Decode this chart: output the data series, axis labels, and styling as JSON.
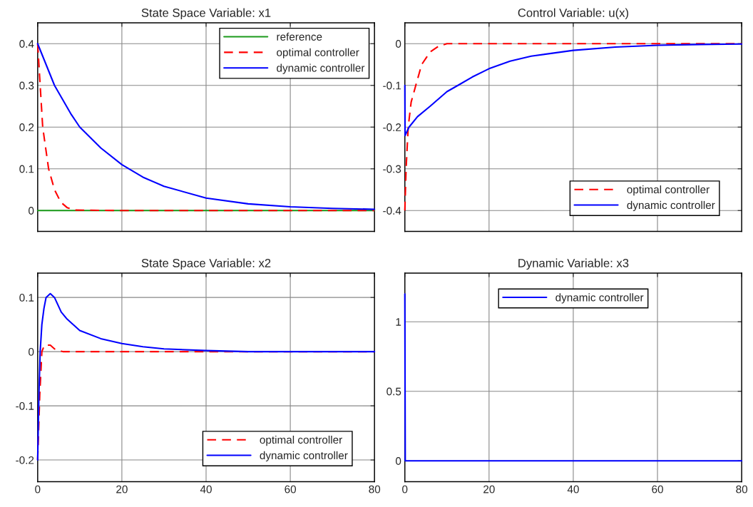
{
  "chart_data": [
    {
      "type": "line",
      "title": "State Space Variable: x1",
      "xlim": [
        0,
        80
      ],
      "xticks": [
        0,
        20,
        40,
        60,
        80
      ],
      "ylim": [
        -0.05,
        0.45
      ],
      "yticks": [
        0,
        0.1,
        0.2,
        0.3,
        0.4
      ],
      "tick_labels": "y",
      "grid": true,
      "legend": "top right",
      "series": [
        {
          "name": "reference",
          "color": "#1a9a1a",
          "line_style": "solid",
          "x": [
            0,
            80
          ],
          "values": [
            0,
            0
          ]
        },
        {
          "name": "optimal controller",
          "color": "#ff0000",
          "line_style": "dashed",
          "x": [
            0,
            0.6,
            1.2,
            2.6,
            4,
            5.5,
            7,
            9,
            20,
            80
          ],
          "values": [
            0.4,
            0.3,
            0.2,
            0.1,
            0.05,
            0.02,
            0.007,
            0.001,
            0,
            0
          ]
        },
        {
          "name": "dynamic controller",
          "color": "#0000ff",
          "line_style": "solid",
          "x": [
            0,
            2,
            4,
            6,
            8,
            10,
            15,
            20,
            25,
            30,
            40,
            50,
            60,
            70,
            80
          ],
          "values": [
            0.4,
            0.35,
            0.3,
            0.265,
            0.23,
            0.2,
            0.15,
            0.11,
            0.08,
            0.058,
            0.03,
            0.016,
            0.009,
            0.005,
            0.003
          ]
        }
      ]
    },
    {
      "type": "line",
      "title": "Control Variable: u(x)",
      "xlim": [
        0,
        80
      ],
      "xticks": [
        0,
        20,
        40,
        60,
        80
      ],
      "ylim": [
        -0.45,
        0.05
      ],
      "yticks": [
        -0.4,
        -0.3,
        -0.2,
        -0.1,
        0
      ],
      "tick_labels": "y",
      "grid": true,
      "legend": "bottom right",
      "series": [
        {
          "name": "optimal controller",
          "color": "#ff0000",
          "line_style": "dashed",
          "x": [
            0,
            0.3,
            0.8,
            1.5,
            2.6,
            4,
            6,
            8,
            10,
            80
          ],
          "values": [
            -0.4,
            -0.3,
            -0.2,
            -0.14,
            -0.1,
            -0.05,
            -0.02,
            -0.006,
            0,
            0
          ]
        },
        {
          "name": "dynamic controller",
          "color": "#0000ff",
          "line_style": "solid",
          "x": [
            0,
            0.05,
            1,
            3,
            6,
            10,
            12.6,
            16,
            20,
            25,
            30,
            40,
            50,
            60,
            70,
            80
          ],
          "values": [
            -0.1,
            -0.22,
            -0.2,
            -0.175,
            -0.15,
            -0.115,
            -0.1,
            -0.08,
            -0.06,
            -0.042,
            -0.03,
            -0.016,
            -0.008,
            -0.004,
            -0.002,
            -0.001
          ]
        }
      ]
    },
    {
      "type": "line",
      "title": "State Space Variable: x2",
      "xlim": [
        0,
        80
      ],
      "xticks": [
        0,
        20,
        40,
        60,
        80
      ],
      "ylim": [
        -0.24,
        0.145
      ],
      "yticks": [
        -0.2,
        -0.1,
        0,
        0.1
      ],
      "grid": true,
      "legend": "bottom right",
      "series": [
        {
          "name": "optimal controller",
          "color": "#ff0000",
          "line_style": "dashed",
          "x": [
            0,
            0.5,
            1,
            1.6,
            3,
            4,
            6,
            80
          ],
          "values": [
            -0.2,
            -0.08,
            0,
            0.012,
            0.012,
            0.005,
            0,
            0
          ]
        },
        {
          "name": "dynamic controller",
          "color": "#0000ff",
          "line_style": "solid",
          "x": [
            0,
            0.3,
            0.6,
            1,
            1.5,
            2,
            3,
            4,
            5.6,
            7,
            10,
            15,
            20,
            25,
            30,
            40,
            50,
            60,
            80
          ],
          "values": [
            -0.2,
            -0.08,
            0,
            0.05,
            0.08,
            0.1,
            0.107,
            0.1,
            0.073,
            0.06,
            0.039,
            0.024,
            0.015,
            0.009,
            0.005,
            0.002,
            0,
            0,
            0
          ]
        }
      ]
    },
    {
      "type": "line",
      "title": "Dynamic Variable: x3",
      "xlim": [
        0,
        80
      ],
      "xticks": [
        0,
        20,
        40,
        60,
        80
      ],
      "ylim": [
        -0.15,
        1.35
      ],
      "yticks": [
        0,
        0.5,
        1
      ],
      "grid": true,
      "legend": "top",
      "series": [
        {
          "name": "dynamic controller",
          "color": "#0000ff",
          "line_style": "solid",
          "x": [
            0,
            0.1,
            20,
            40,
            60,
            80
          ],
          "values": [
            1.2,
            0,
            0,
            0,
            0,
            0
          ]
        }
      ]
    }
  ]
}
